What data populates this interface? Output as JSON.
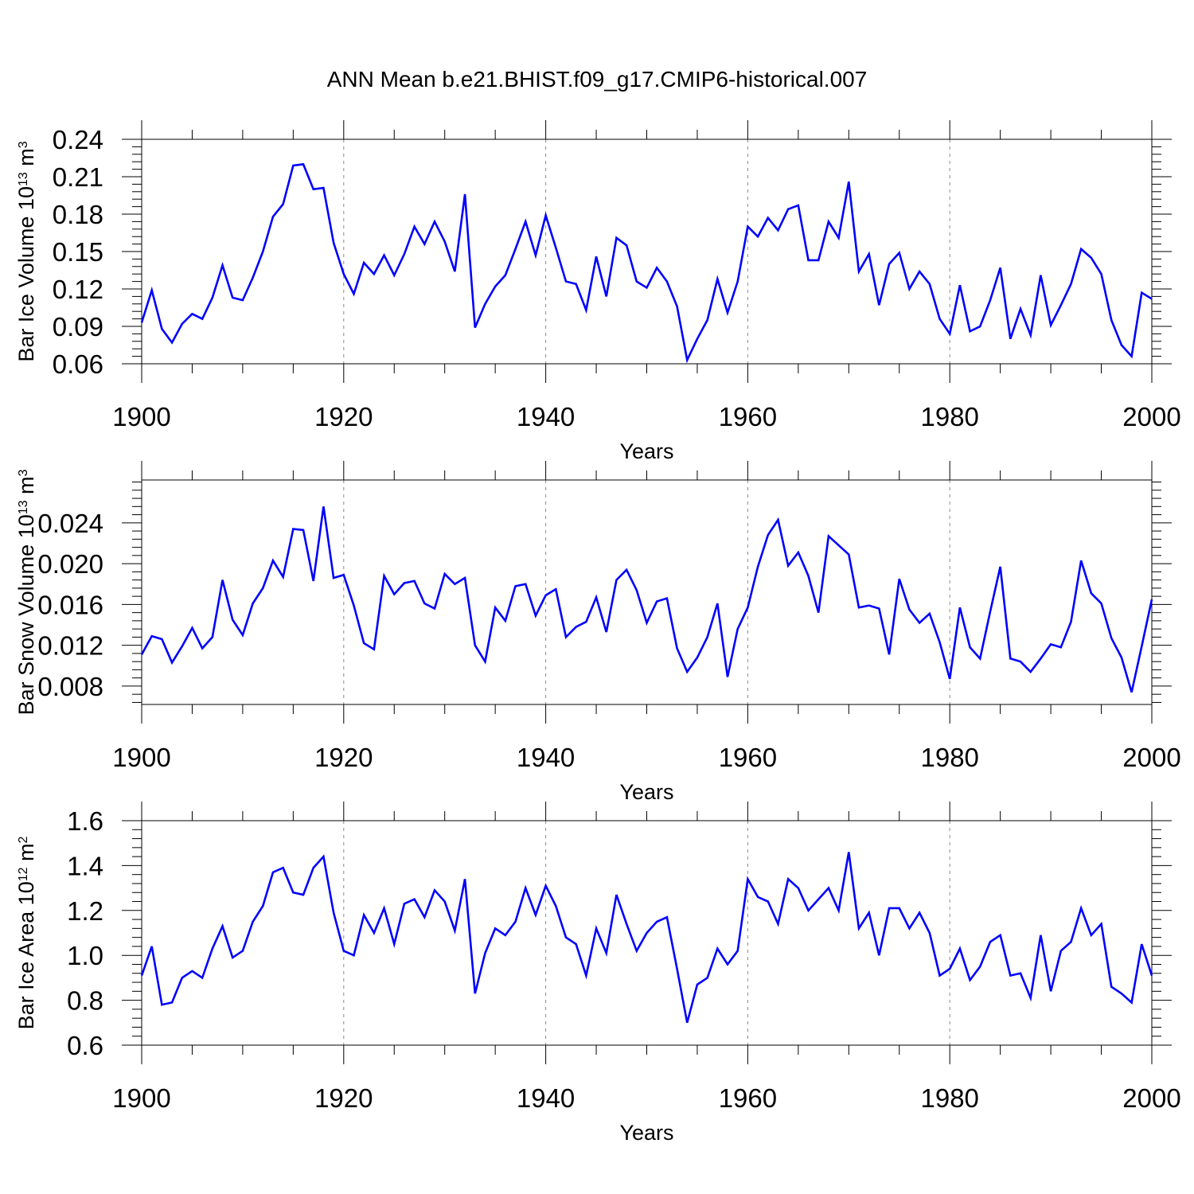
{
  "title": "ANN Mean b.e21.BHIST.f09_g17.CMIP6-historical.007",
  "line_color": "#0000ff",
  "chart_data": [
    {
      "type": "line",
      "xlabel": "Years",
      "ylabel": {
        "prefix": "Bar Ice Volume 10",
        "exp": "13",
        "unit": " m",
        "unit_exp": "3"
      },
      "xlim": [
        1900,
        2000
      ],
      "ylim": [
        0.06,
        0.24
      ],
      "xticks": [
        1900,
        1920,
        1940,
        1960,
        1980,
        2000
      ],
      "xtick_labels": [
        "1900",
        "1920",
        "1940",
        "1960",
        "1980",
        "2000"
      ],
      "yticks": [
        0.06,
        0.09,
        0.12,
        0.15,
        0.18,
        0.21,
        0.24
      ],
      "ytick_labels": [
        "0.06",
        "0.09",
        "0.12",
        "0.15",
        "0.18",
        "0.21",
        "0.24"
      ],
      "grid": "vertical dashed at major x ticks",
      "x_start": 1900,
      "values": [
        0.093,
        0.119,
        0.088,
        0.077,
        0.092,
        0.1,
        0.096,
        0.113,
        0.139,
        0.113,
        0.111,
        0.129,
        0.15,
        0.178,
        0.188,
        0.219,
        0.22,
        0.2,
        0.201,
        0.157,
        0.132,
        0.116,
        0.141,
        0.132,
        0.147,
        0.131,
        0.148,
        0.17,
        0.156,
        0.174,
        0.158,
        0.134,
        0.196,
        0.089,
        0.108,
        0.122,
        0.131,
        0.152,
        0.174,
        0.147,
        0.179,
        0.153,
        0.126,
        0.124,
        0.103,
        0.146,
        0.114,
        0.161,
        0.155,
        0.126,
        0.121,
        0.137,
        0.126,
        0.106,
        0.063,
        0.08,
        0.095,
        0.128,
        0.101,
        0.126,
        0.17,
        0.162,
        0.177,
        0.167,
        0.184,
        0.187,
        0.143,
        0.143,
        0.174,
        0.161,
        0.206,
        0.134,
        0.148,
        0.107,
        0.14,
        0.149,
        0.12,
        0.134,
        0.124,
        0.096,
        0.084,
        0.123,
        0.086,
        0.09,
        0.111,
        0.137,
        0.08,
        0.104,
        0.083,
        0.131,
        0.091,
        0.107,
        0.124,
        0.152,
        0.145,
        0.132,
        0.095,
        0.075,
        0.066,
        0.117,
        0.112
      ]
    },
    {
      "type": "line",
      "xlabel": "Years",
      "ylabel": {
        "prefix": "Bar Snow Volume 10",
        "exp": "13",
        "unit": " m",
        "unit_exp": "3"
      },
      "xlim": [
        1900,
        2000
      ],
      "ylim": [
        0.0062,
        0.0282
      ],
      "xticks": [
        1900,
        1920,
        1940,
        1960,
        1980,
        2000
      ],
      "xtick_labels": [
        "1900",
        "1920",
        "1940",
        "1960",
        "1980",
        "2000"
      ],
      "yticks": [
        0.008,
        0.012,
        0.016,
        0.02,
        0.024
      ],
      "ytick_labels": [
        "0.008",
        "0.012",
        "0.016",
        "0.020",
        "0.024"
      ],
      "grid": "vertical dashed at major x ticks",
      "x_start": 1900,
      "values": [
        0.0111,
        0.0129,
        0.0126,
        0.0103,
        0.0119,
        0.0137,
        0.0117,
        0.0128,
        0.0184,
        0.0145,
        0.013,
        0.0161,
        0.0176,
        0.0203,
        0.0187,
        0.0234,
        0.0233,
        0.0183,
        0.0256,
        0.0186,
        0.0189,
        0.0159,
        0.0122,
        0.0116,
        0.0188,
        0.017,
        0.0181,
        0.0183,
        0.0161,
        0.0156,
        0.019,
        0.018,
        0.0186,
        0.012,
        0.0104,
        0.0157,
        0.0144,
        0.0178,
        0.018,
        0.0149,
        0.0169,
        0.0175,
        0.0128,
        0.0138,
        0.0143,
        0.0167,
        0.0133,
        0.0184,
        0.0194,
        0.0174,
        0.0142,
        0.0163,
        0.0166,
        0.0117,
        0.0094,
        0.0108,
        0.0128,
        0.0161,
        0.0089,
        0.0136,
        0.0157,
        0.0197,
        0.0228,
        0.0243,
        0.0198,
        0.0211,
        0.0188,
        0.0152,
        0.0227,
        0.0218,
        0.0209,
        0.0157,
        0.0159,
        0.0156,
        0.0111,
        0.0185,
        0.0155,
        0.0142,
        0.0151,
        0.0123,
        0.0087,
        0.0157,
        0.0118,
        0.0107,
        0.0153,
        0.0197,
        0.0107,
        0.0104,
        0.0094,
        0.0107,
        0.0121,
        0.0118,
        0.0143,
        0.0203,
        0.0171,
        0.0161,
        0.0127,
        0.0108,
        0.0074,
        0.0119,
        0.0165
      ]
    },
    {
      "type": "line",
      "xlabel": "Years",
      "ylabel": {
        "prefix": "Bar Ice Area 10",
        "exp": "12",
        "unit": " m",
        "unit_exp": "2"
      },
      "xlim": [
        1900,
        2000
      ],
      "ylim": [
        0.6,
        1.6
      ],
      "xticks": [
        1900,
        1920,
        1940,
        1960,
        1980,
        2000
      ],
      "xtick_labels": [
        "1900",
        "1920",
        "1940",
        "1960",
        "1980",
        "2000"
      ],
      "yticks": [
        0.6,
        0.8,
        1.0,
        1.2,
        1.4,
        1.6
      ],
      "ytick_labels": [
        "0.6",
        "0.8",
        "1.0",
        "1.2",
        "1.4",
        "1.6"
      ],
      "grid": "vertical dashed at major x ticks",
      "x_start": 1900,
      "values": [
        0.91,
        1.04,
        0.78,
        0.79,
        0.9,
        0.93,
        0.9,
        1.03,
        1.13,
        0.99,
        1.02,
        1.15,
        1.22,
        1.37,
        1.39,
        1.28,
        1.27,
        1.39,
        1.44,
        1.19,
        1.02,
        1.0,
        1.18,
        1.1,
        1.21,
        1.05,
        1.23,
        1.25,
        1.17,
        1.29,
        1.24,
        1.11,
        1.34,
        0.83,
        1.01,
        1.12,
        1.09,
        1.15,
        1.3,
        1.18,
        1.31,
        1.22,
        1.08,
        1.05,
        0.91,
        1.12,
        1.01,
        1.27,
        1.14,
        1.02,
        1.1,
        1.15,
        1.17,
        0.94,
        0.7,
        0.87,
        0.9,
        1.03,
        0.96,
        1.02,
        1.34,
        1.26,
        1.24,
        1.14,
        1.34,
        1.3,
        1.2,
        1.25,
        1.3,
        1.2,
        1.46,
        1.12,
        1.19,
        1.0,
        1.21,
        1.21,
        1.12,
        1.19,
        1.1,
        0.91,
        0.94,
        1.03,
        0.89,
        0.95,
        1.06,
        1.09,
        0.91,
        0.92,
        0.81,
        1.09,
        0.84,
        1.02,
        1.06,
        1.21,
        1.09,
        1.14,
        0.86,
        0.83,
        0.79,
        1.05,
        0.91
      ]
    }
  ]
}
